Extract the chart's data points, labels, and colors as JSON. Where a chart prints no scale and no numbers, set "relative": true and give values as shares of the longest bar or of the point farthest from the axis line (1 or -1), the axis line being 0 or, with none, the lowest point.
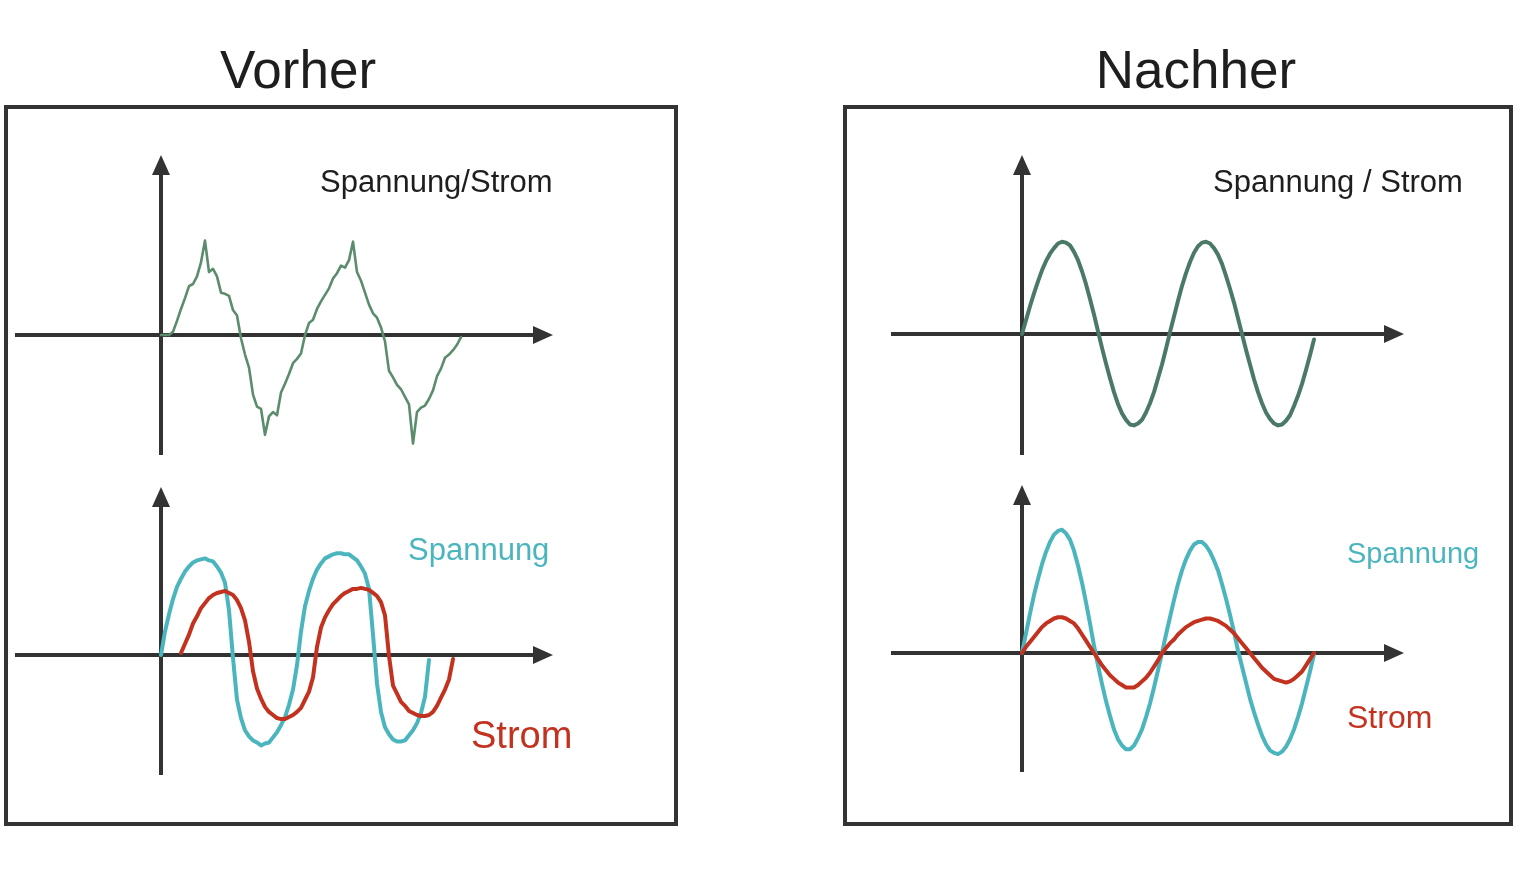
{
  "chart_data": [
    {
      "type": "line",
      "title": "Vorher",
      "ylabel": "Spannung/Strom",
      "relative": true,
      "categories": [
        null,
        null,
        null,
        null,
        null,
        null,
        null,
        null,
        null,
        null,
        null,
        null,
        null,
        null,
        null,
        null,
        null,
        null,
        null,
        null,
        null,
        null,
        null,
        null,
        null,
        null,
        null,
        null,
        null,
        null,
        null,
        null,
        null,
        null,
        null,
        null,
        null,
        null,
        null,
        null,
        null,
        null,
        null,
        null,
        null,
        null,
        null,
        null,
        null,
        null,
        null,
        null,
        null,
        null,
        null,
        null,
        null,
        null,
        null,
        null,
        null,
        null,
        null,
        null,
        null,
        null,
        null,
        null,
        null,
        null,
        null,
        null,
        null,
        null,
        null,
        null
      ],
      "series": [
        {
          "color": "#5b8c6c",
          "values": [
            0,
            0,
            0,
            0.03,
            0.13,
            0.24,
            0.34,
            0.45,
            0.47,
            0.54,
            0.67,
            0.87,
            0.58,
            0.61,
            0.54,
            0.39,
            0.38,
            0.36,
            0.23,
            0.18,
            -0.03,
            -0.18,
            -0.3,
            -0.55,
            -0.66,
            -0.68,
            -0.92,
            -0.75,
            -0.71,
            -0.74,
            -0.53,
            -0.45,
            -0.36,
            -0.26,
            -0.22,
            -0.17,
            0,
            0.11,
            0.14,
            0.24,
            0.31,
            0.37,
            0.43,
            0.52,
            0.57,
            0.64,
            0.62,
            0.69,
            0.86,
            0.58,
            0.5,
            0.39,
            0.28,
            0.2,
            0.16,
            0.07,
            -0.06,
            -0.33,
            -0.39,
            -0.46,
            -0.5,
            -0.57,
            -0.64,
            -1,
            -0.71,
            -0.67,
            -0.65,
            -0.59,
            -0.51,
            -0.38,
            -0.31,
            -0.21,
            -0.18,
            -0.14,
            -0.09,
            -0.02
          ]
        }
      ]
    },
    {
      "type": "line",
      "relative": true,
      "categories": [
        null,
        null,
        null,
        null,
        null,
        null,
        null,
        null,
        null,
        null,
        null,
        null,
        null,
        null,
        null,
        null,
        null,
        null,
        null,
        null,
        null,
        null,
        null,
        null,
        null,
        null,
        null,
        null,
        null,
        null,
        null,
        null,
        null,
        null,
        null,
        null,
        null,
        null,
        null,
        null,
        null,
        null,
        null,
        null,
        null,
        null,
        null,
        null,
        null,
        null,
        null,
        null,
        null,
        null,
        null,
        null,
        null,
        null,
        null,
        null,
        null,
        null,
        null,
        null,
        null,
        null,
        null,
        null,
        null,
        null,
        null,
        null,
        null,
        null
      ],
      "series": [
        {
          "name": "Spannung",
          "color": "#4bb5be",
          "values": [
            0,
            0.23,
            0.4,
            0.55,
            0.67,
            0.75,
            0.82,
            0.87,
            0.91,
            0.93,
            0.94,
            0.95,
            0.93,
            0.92,
            0.87,
            0.81,
            0.71,
            0.44,
            -0.03,
            -0.44,
            -0.62,
            -0.74,
            -0.8,
            -0.84,
            -0.86,
            -0.89,
            -0.87,
            -0.86,
            -0.81,
            -0.76,
            -0.69,
            -0.61,
            -0.49,
            -0.34,
            -0.1,
            0.23,
            0.48,
            0.63,
            0.75,
            0.84,
            0.9,
            0.95,
            0.97,
            0.99,
            1,
            1,
            0.99,
            0.99,
            0.96,
            0.93,
            0.87,
            0.8,
            0.65,
            0.2,
            -0.28,
            -0.56,
            -0.71,
            -0.78,
            -0.83,
            -0.85,
            -0.85,
            -0.84,
            -0.79,
            -0.74,
            -0.67,
            -0.57,
            -0.41,
            -0.05,
            null,
            null,
            null,
            null,
            null,
            null
          ]
        },
        {
          "name": "Strom",
          "color": "#c3321f",
          "values": [
            null,
            null,
            null,
            null,
            null,
            0.02,
            0.11,
            0.2,
            0.31,
            0.38,
            0.46,
            0.51,
            0.56,
            0.59,
            0.61,
            0.62,
            0.63,
            0.61,
            0.59,
            0.54,
            0.46,
            0.34,
            0.13,
            -0.16,
            -0.33,
            -0.43,
            -0.51,
            -0.56,
            -0.59,
            -0.62,
            -0.63,
            -0.63,
            -0.61,
            -0.59,
            -0.56,
            -0.52,
            -0.44,
            -0.36,
            -0.22,
            0.08,
            0.27,
            0.37,
            0.44,
            0.5,
            0.54,
            0.58,
            0.61,
            0.63,
            0.65,
            0.65,
            0.66,
            0.65,
            0.64,
            0.61,
            0.58,
            0.52,
            0.39,
            -0.01,
            -0.3,
            -0.38,
            -0.46,
            -0.5,
            -0.55,
            -0.57,
            -0.59,
            -0.6,
            -0.6,
            -0.59,
            -0.56,
            -0.5,
            -0.42,
            -0.34,
            -0.24,
            -0.04
          ]
        }
      ]
    },
    {
      "type": "line",
      "title": "Nachher",
      "ylabel": "Spannung / Strom",
      "relative": true,
      "categories": [
        null,
        null,
        null,
        null,
        null,
        null,
        null,
        null,
        null,
        null,
        null,
        null,
        null,
        null,
        null,
        null,
        null,
        null,
        null,
        null,
        null,
        null,
        null,
        null,
        null,
        null,
        null,
        null,
        null,
        null,
        null,
        null,
        null,
        null,
        null,
        null,
        null,
        null,
        null,
        null,
        null,
        null,
        null,
        null,
        null,
        null,
        null,
        null,
        null,
        null,
        null,
        null,
        null,
        null,
        null,
        null,
        null,
        null,
        null,
        null,
        null,
        null,
        null,
        null,
        null,
        null,
        null,
        null,
        null,
        null,
        null,
        null,
        null,
        null
      ],
      "series": [
        {
          "color": "#4a7a67",
          "values": [
            0,
            0.15,
            0.3,
            0.44,
            0.57,
            0.69,
            0.79,
            0.87,
            0.93,
            0.98,
            1,
            0.99,
            0.96,
            0.89,
            0.8,
            0.68,
            0.54,
            0.38,
            0.21,
            0.03,
            -0.15,
            -0.32,
            -0.48,
            -0.63,
            -0.76,
            -0.86,
            -0.93,
            -0.98,
            -0.99,
            -0.97,
            -0.93,
            -0.85,
            -0.75,
            -0.63,
            -0.48,
            -0.33,
            -0.16,
            0.02,
            0.19,
            0.36,
            0.52,
            0.66,
            0.78,
            0.88,
            0.95,
            0.99,
            1,
            0.98,
            0.93,
            0.86,
            0.76,
            0.63,
            0.49,
            0.34,
            0.17,
            0,
            -0.17,
            -0.33,
            -0.49,
            -0.63,
            -0.75,
            -0.85,
            -0.92,
            -0.97,
            -0.99,
            -0.98,
            -0.94,
            -0.88,
            -0.78,
            -0.67,
            -0.54,
            -0.39,
            -0.23,
            -0.06
          ]
        }
      ]
    },
    {
      "type": "line",
      "relative": true,
      "categories": [
        null,
        null,
        null,
        null,
        null,
        null,
        null,
        null,
        null,
        null,
        null,
        null,
        null,
        null,
        null,
        null,
        null,
        null,
        null,
        null,
        null,
        null,
        null,
        null,
        null,
        null,
        null,
        null,
        null,
        null,
        null,
        null,
        null,
        null,
        null,
        null,
        null,
        null,
        null,
        null,
        null,
        null,
        null,
        null,
        null,
        null,
        null,
        null,
        null,
        null,
        null,
        null,
        null,
        null,
        null,
        null,
        null,
        null,
        null,
        null,
        null,
        null,
        null,
        null,
        null,
        null,
        null,
        null,
        null,
        null,
        null,
        null,
        null,
        null
      ],
      "series": [
        {
          "name": "Spannung",
          "color": "#4bb5be",
          "values": [
            0,
            0.16,
            0.32,
            0.47,
            0.6,
            0.72,
            0.82,
            0.9,
            0.96,
            0.99,
            1,
            0.97,
            0.92,
            0.83,
            0.71,
            0.57,
            0.41,
            0.24,
            0.06,
            -0.1,
            -0.25,
            -0.39,
            -0.51,
            -0.62,
            -0.7,
            -0.75,
            -0.78,
            -0.78,
            -0.75,
            -0.69,
            -0.62,
            -0.52,
            -0.41,
            -0.28,
            -0.14,
            0,
            0.15,
            0.29,
            0.43,
            0.56,
            0.67,
            0.76,
            0.83,
            0.88,
            0.9,
            0.9,
            0.87,
            0.82,
            0.75,
            0.67,
            0.56,
            0.44,
            0.31,
            0.17,
            0.02,
            -0.11,
            -0.24,
            -0.37,
            -0.48,
            -0.58,
            -0.67,
            -0.74,
            -0.79,
            -0.81,
            -0.82,
            -0.8,
            -0.76,
            -0.7,
            -0.62,
            -0.52,
            -0.41,
            -0.28,
            -0.15,
            -0.01
          ]
        },
        {
          "name": "Strom",
          "color": "#c3321f",
          "values": [
            0,
            0.05,
            0.09,
            0.13,
            0.17,
            0.21,
            0.24,
            0.26,
            0.28,
            0.29,
            0.29,
            0.28,
            0.26,
            0.24,
            0.2,
            0.15,
            0.1,
            0.05,
            0,
            -0.05,
            -0.1,
            -0.14,
            -0.18,
            -0.21,
            -0.24,
            -0.26,
            -0.28,
            -0.28,
            -0.28,
            -0.26,
            -0.23,
            -0.2,
            -0.16,
            -0.11,
            -0.06,
            0,
            0.04,
            0.08,
            0.11,
            0.15,
            0.18,
            0.21,
            0.23,
            0.25,
            0.26,
            0.27,
            0.28,
            0.28,
            0.27,
            0.26,
            0.24,
            0.22,
            0.19,
            0.16,
            0.12,
            0.08,
            0.04,
            0,
            -0.04,
            -0.08,
            -0.12,
            -0.15,
            -0.18,
            -0.21,
            -0.22,
            -0.23,
            -0.24,
            -0.23,
            -0.21,
            -0.18,
            -0.15,
            -0.1,
            -0.05,
            0
          ]
        }
      ]
    }
  ]
}
